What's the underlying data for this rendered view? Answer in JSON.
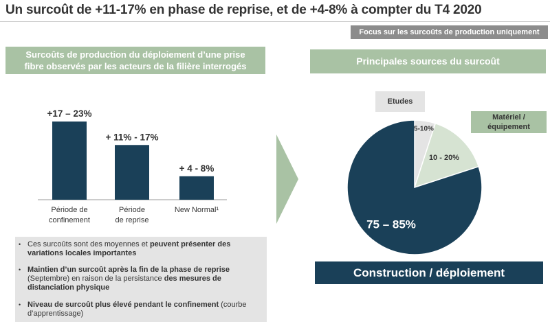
{
  "title": "Un surcoût de +11-17% en phase de reprise, et de +4-8% à compter du T4 2020",
  "focus_badge": "Focus sur les surcoûts de production uniquement",
  "left_header": {
    "line1": "Surcoûts de production du déploiement d’une prise",
    "line2": "fibre observés par les acteurs de la filière interrogés"
  },
  "right_header": "Principales sources du surcoût",
  "bullets": [
    {
      "parts": [
        "Ces surcoûts sont des moyennes et ",
        "peuvent présenter des variations locales importantes"
      ]
    },
    {
      "parts": [
        "Maintien d’un surcoût après la fin de la phase de reprise",
        " (Septembre) en raison de la persistance ",
        "des mesures de distanciation physique"
      ]
    },
    {
      "parts": [
        "Niveau de surcoût plus élevé pendant le confinement",
        " (courbe d’apprentissage)"
      ]
    }
  ],
  "pie_labels": {
    "etudes": "Etudes",
    "materiel_line1": "Matériel /",
    "materiel_line2": "équipement",
    "construction": "Construction / déploiement"
  },
  "colors": {
    "navy": "#1a4058",
    "sage": "#a9c2a4",
    "light_green": "#d6e3d2",
    "grey": "#e4e4e4"
  },
  "chart_data": [
    {
      "type": "bar",
      "categories": [
        [
          "Période de",
          "confinement"
        ],
        [
          "Période",
          "de reprise"
        ],
        [
          "New Normal¹"
        ]
      ],
      "values": [
        20,
        14,
        6
      ],
      "labels": [
        "+17 – 23%",
        "+ 11% - 17%",
        "+ 4 - 8%"
      ],
      "ylim": [
        0,
        23
      ]
    },
    {
      "type": "pie",
      "slices": [
        {
          "name": "Etudes",
          "value": 5,
          "label": "5-10%"
        },
        {
          "name": "Matériel / équipement",
          "value": 15,
          "label": "10 - 20%"
        },
        {
          "name": "Construction / déploiement",
          "value": 80,
          "label": "75 – 85%"
        }
      ]
    }
  ]
}
